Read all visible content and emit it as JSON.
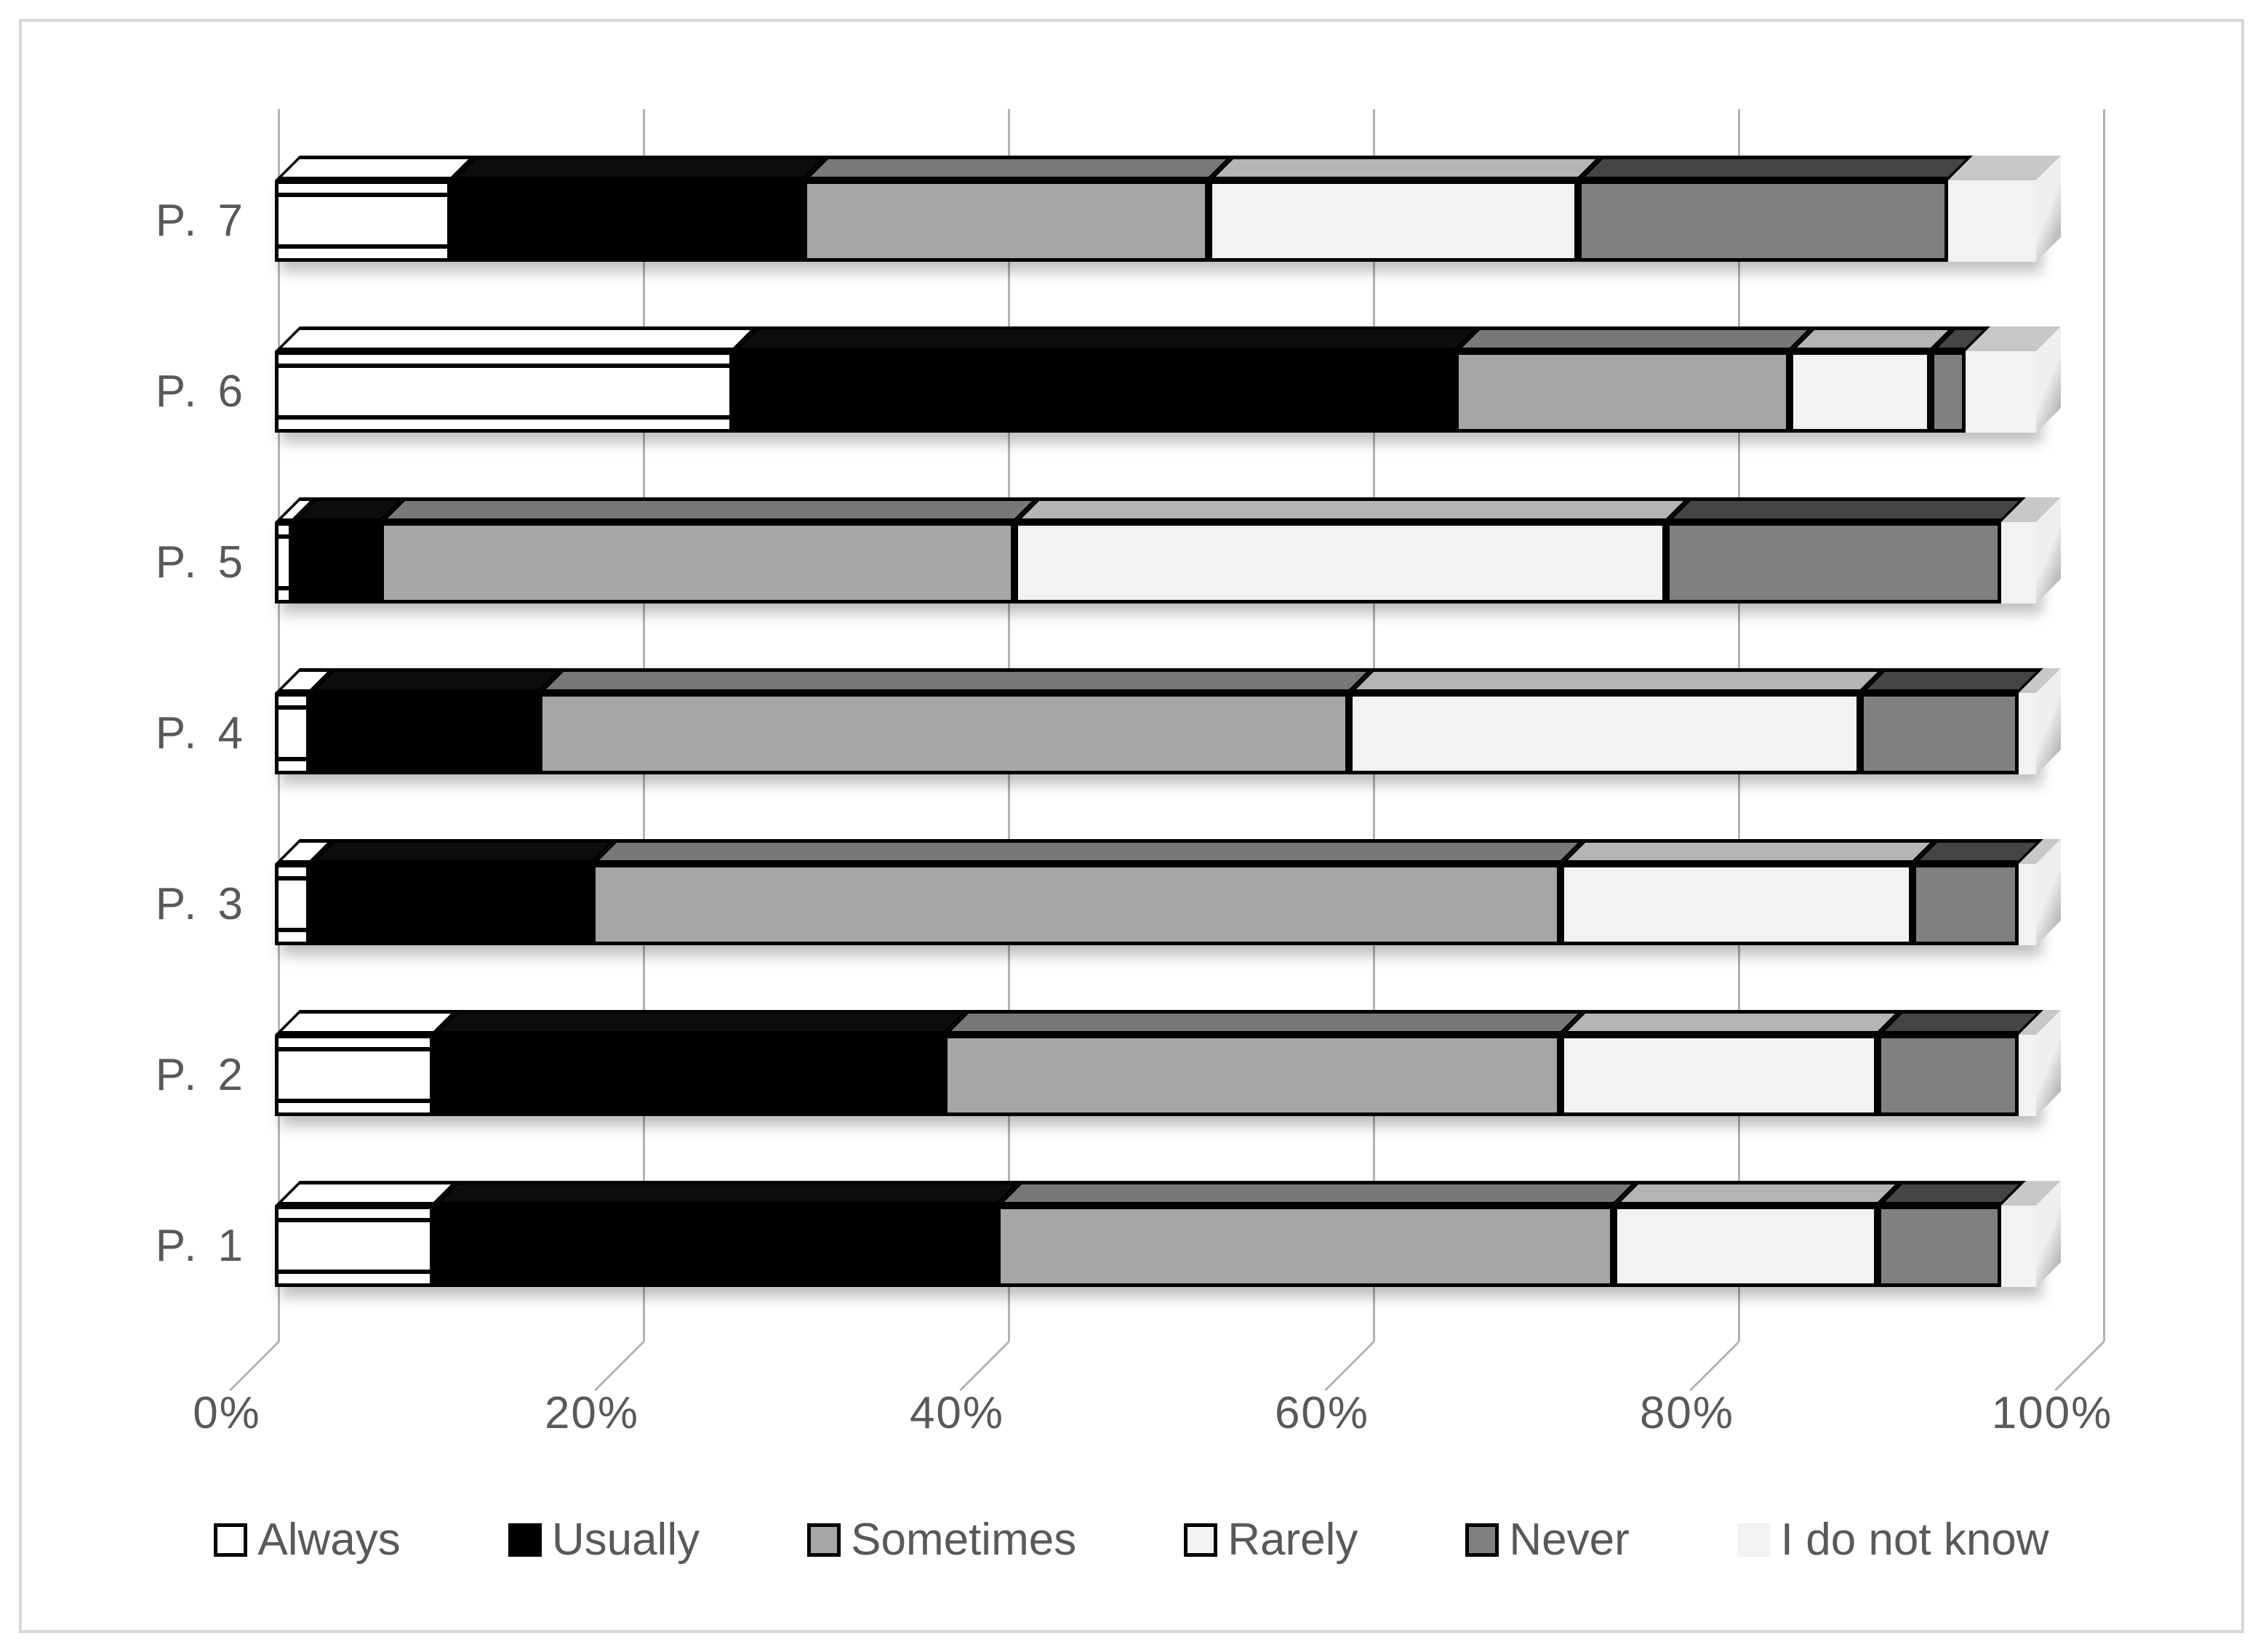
{
  "page": {
    "background": "#ffffff",
    "frame_border_color": "#d7d7d7",
    "text_color": "#595959",
    "gridline_color": "#b3b3b3"
  },
  "chart_data": {
    "type": "bar",
    "subtype": "horizontal-stacked-3d-100pct",
    "title": "",
    "xlabel": "",
    "ylabel": "",
    "grid": true,
    "legend_position": "bottom",
    "categories_top_to_bottom": [
      "P. 7",
      "P. 6",
      "P. 5",
      "P. 4",
      "P. 3",
      "P. 2",
      "P. 1"
    ],
    "x_axis": {
      "ticks": [
        "0%",
        "20%",
        "40%",
        "60%",
        "80%",
        "100%"
      ],
      "min": 0,
      "max": 100,
      "unit": "%"
    },
    "series": [
      {
        "name": "Always",
        "fill": "#ffffff",
        "top": "#ffffff",
        "bordered": true,
        "wireframe": true,
        "values": [
          10,
          26,
          1,
          2,
          2,
          9,
          9
        ]
      },
      {
        "name": "Usually",
        "fill": "#000000",
        "top": "#0d0d0d",
        "bordered": true,
        "wireframe": false,
        "values": [
          20,
          41,
          5,
          13,
          16,
          29,
          32
        ]
      },
      {
        "name": "Sometimes",
        "fill": "#a6a6a6",
        "top": "#787878",
        "bordered": true,
        "wireframe": false,
        "values": [
          23,
          19,
          36,
          46,
          55,
          35,
          35
        ]
      },
      {
        "name": "Rarely",
        "fill": "#f2f2f2",
        "top": "#b5b5b5",
        "bordered": true,
        "wireframe": false,
        "values": [
          21,
          8,
          37,
          29,
          20,
          18,
          15
        ]
      },
      {
        "name": "Never",
        "fill": "#808080",
        "top": "#454545",
        "bordered": true,
        "wireframe": false,
        "values": [
          21,
          2,
          19,
          9,
          6,
          8,
          7
        ]
      },
      {
        "name": "I do not know",
        "fill": "#f2f2f2",
        "top": "#c8c8c8",
        "bordered": false,
        "wireframe": false,
        "values": [
          5,
          4,
          2,
          1,
          1,
          1,
          2
        ]
      }
    ]
  }
}
